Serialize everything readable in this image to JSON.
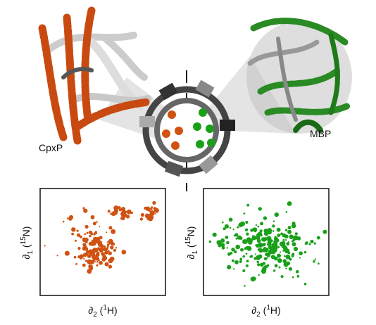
{
  "proteins": [
    {
      "label": "CpxP"
    },
    {
      "label": "MBP"
    }
  ],
  "spectra": [
    {
      "y_label": [
        "∂",
        "1",
        " (",
        "15",
        "N)"
      ],
      "x_label": [
        "∂",
        "2",
        " (",
        "1",
        "H)"
      ]
    },
    {
      "y_label": [
        "∂",
        "1",
        " (",
        "15",
        "N)"
      ],
      "x_label": [
        "∂",
        "2",
        " (",
        "1",
        "H)"
      ]
    }
  ]
}
